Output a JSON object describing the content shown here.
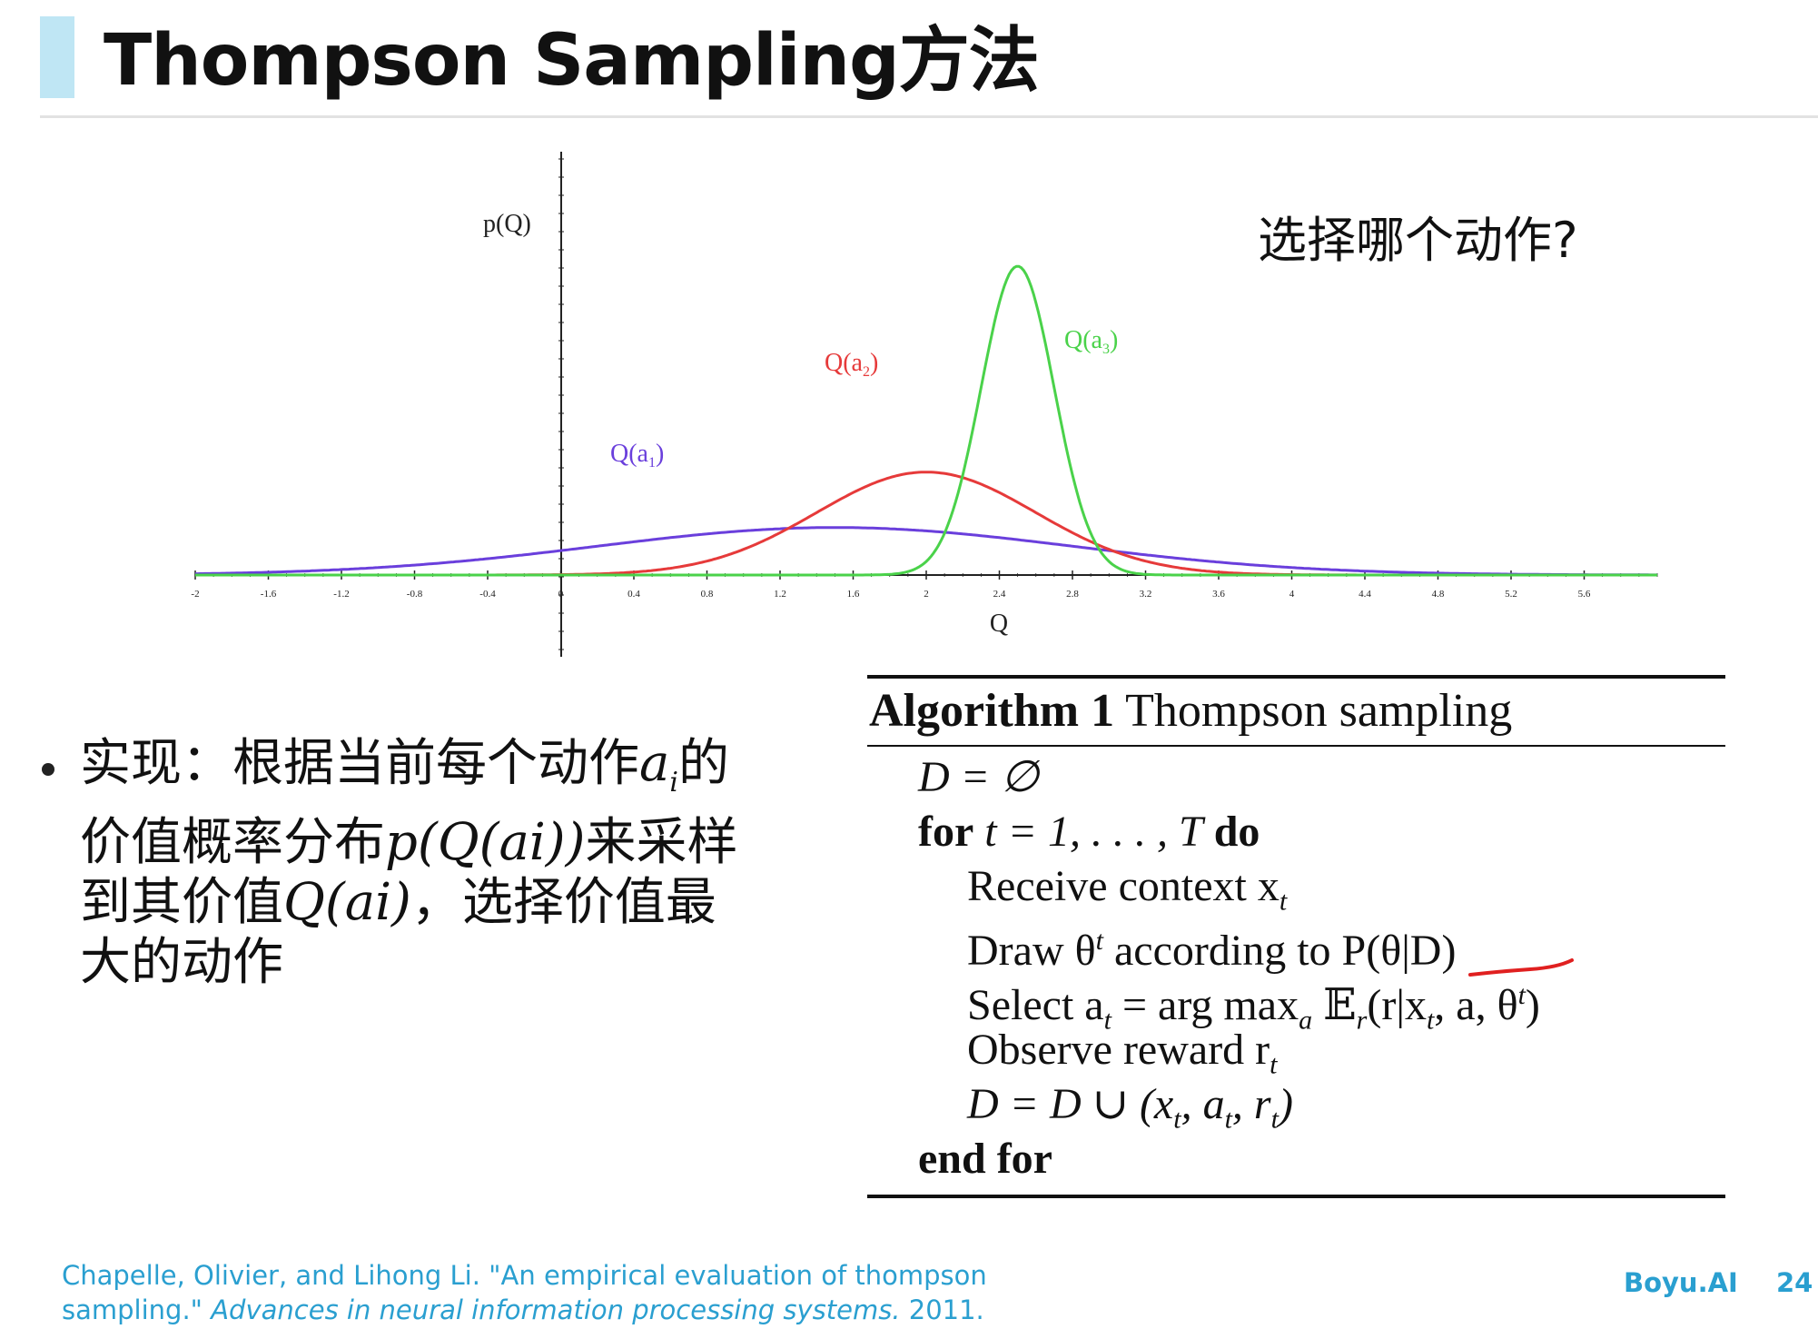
{
  "slide": {
    "title": "Thompson Sampling方法",
    "question": "选择哪个动作?",
    "bullet": {
      "text_1": "实现：根据当前每个动作",
      "math_1": "a",
      "math_1_sub": "i",
      "text_2": "的",
      "text_3": "价值概率分布",
      "math_2": "p(Q(ai))",
      "text_4": "来采样",
      "text_5": "到其价值",
      "math_3": "Q(ai)",
      "text_6": "，选择价值最",
      "text_7": "大的动作"
    },
    "citation": {
      "authors_title": "Chapelle, Olivier, and Lihong Li. \"An empirical evaluation of thompson sampling.\"",
      "venue": "Advances in neural information processing systems.",
      "year": "2011."
    },
    "brand": "Boyu.AI",
    "page_number": "24"
  },
  "algorithm": {
    "label": "Algorithm 1",
    "name": "Thompson sampling",
    "lines": {
      "init": "D = ∅",
      "for_kw": "for",
      "for_range": "t = 1, . . . , T",
      "do_kw": "do",
      "l1": "Receive context x",
      "l1_sub": "t",
      "l2_a": "Draw θ",
      "l2_sup": "t",
      "l2_b": " according to P(θ|D)",
      "l3": "Select a",
      "l3_sub": "t",
      "l3_b": " = arg max",
      "l3_sub2": "a",
      "l3_c": " 𝔼",
      "l3_sub3": "r",
      "l3_d": "(r|x",
      "l3_e": ", a, θ",
      "l3_f": ")",
      "l4": "Observe reward r",
      "l4_sub": "t",
      "l5": "D = D ∪ (x",
      "l5_b": ", a",
      "l5_c": ", r",
      "l5_d": ")",
      "end_kw": "end for"
    }
  },
  "chart_data": {
    "type": "line",
    "xlabel": "Q",
    "ylabel": "p(Q)",
    "xlim": [
      -2,
      6
    ],
    "x_ticks": [
      "-2",
      "-1.6",
      "-1.2",
      "-0.8",
      "-0.4",
      "0",
      "0.4",
      "0.8",
      "1.2",
      "1.6",
      "2",
      "2.4",
      "2.8",
      "3.2",
      "3.6",
      "4",
      "4.4",
      "4.8",
      "5.2",
      "5.6"
    ],
    "series": [
      {
        "name": "Q(a1)",
        "label_main": "Q(a",
        "label_sub": "1",
        "label_end": ")",
        "color": "#6a3fdc",
        "mean": 1.5,
        "std": 1.3
      },
      {
        "name": "Q(a2)",
        "label_main": "Q(a",
        "label_sub": "2",
        "label_end": ")",
        "color": "#e63a3a",
        "mean": 2.0,
        "std": 0.6
      },
      {
        "name": "Q(a3)",
        "label_main": "Q(a",
        "label_sub": "3",
        "label_end": ")",
        "color": "#4ad24a",
        "mean": 2.5,
        "std": 0.2
      }
    ]
  }
}
